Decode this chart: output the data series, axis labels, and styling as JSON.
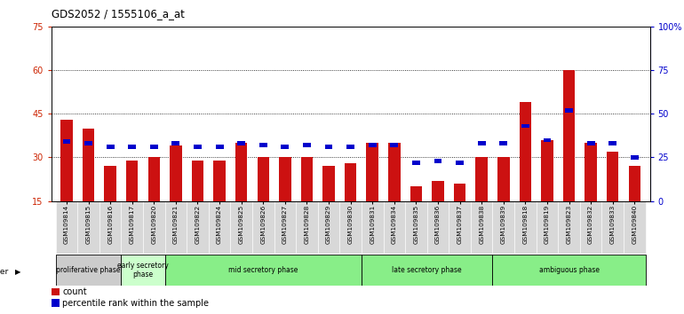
{
  "title": "GDS2052 / 1555106_a_at",
  "samples": [
    "GSM109814",
    "GSM109815",
    "GSM109816",
    "GSM109817",
    "GSM109820",
    "GSM109821",
    "GSM109822",
    "GSM109824",
    "GSM109825",
    "GSM109826",
    "GSM109827",
    "GSM109828",
    "GSM109829",
    "GSM109830",
    "GSM109831",
    "GSM109834",
    "GSM109835",
    "GSM109836",
    "GSM109837",
    "GSM109838",
    "GSM109839",
    "GSM109818",
    "GSM109819",
    "GSM109823",
    "GSM109832",
    "GSM109833",
    "GSM109840"
  ],
  "count_values": [
    43,
    40,
    27,
    29,
    30,
    34,
    29,
    29,
    35,
    30,
    30,
    30,
    27,
    28,
    35,
    35,
    20,
    22,
    21,
    30,
    30,
    49,
    36,
    60,
    35,
    32,
    27
  ],
  "percentile_values": [
    34,
    33,
    31,
    31,
    31,
    33,
    31,
    31,
    33,
    32,
    31,
    32,
    31,
    31,
    32,
    32,
    22,
    23,
    22,
    33,
    33,
    43,
    35,
    52,
    33,
    33,
    25
  ],
  "phases": [
    {
      "label": "proliferative phase",
      "start": 0,
      "end": 3,
      "color": "#cccccc"
    },
    {
      "label": "early secretory\nphase",
      "start": 3,
      "end": 5,
      "color": "#ccffcc"
    },
    {
      "label": "mid secretory phase",
      "start": 5,
      "end": 14,
      "color": "#88ee88"
    },
    {
      "label": "late secretory phase",
      "start": 14,
      "end": 20,
      "color": "#88ee88"
    },
    {
      "label": "ambiguous phase",
      "start": 20,
      "end": 27,
      "color": "#88ee88"
    }
  ],
  "ylim_left": [
    15,
    75
  ],
  "ylim_right": [
    0,
    100
  ],
  "yticks_left": [
    15,
    30,
    45,
    60,
    75
  ],
  "yticks_right": [
    0,
    25,
    50,
    75,
    100
  ],
  "ytick_labels_right": [
    "0",
    "25",
    "50",
    "75",
    "100%"
  ],
  "grid_values": [
    30,
    45,
    60
  ],
  "bar_color": "#cc1111",
  "percentile_color": "#0000cc",
  "bar_width": 0.55,
  "left_axis_color": "#cc2200",
  "right_axis_color": "#0000cc",
  "legend_count": "count",
  "legend_percentile": "percentile rank within the sample"
}
